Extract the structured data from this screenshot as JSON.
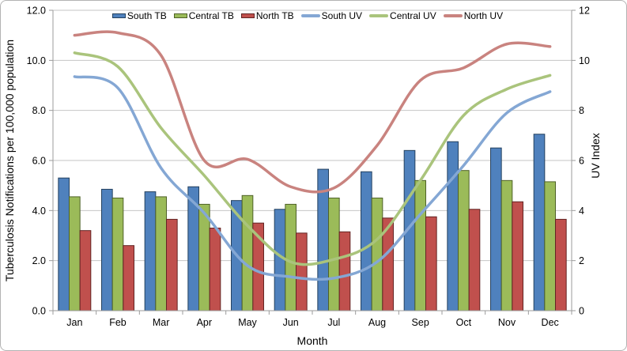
{
  "chart_data": {
    "type": "combo-bar-line",
    "categories": [
      "Jan",
      "Feb",
      "Mar",
      "Apr",
      "May",
      "Jun",
      "Jul",
      "Aug",
      "Sep",
      "Oct",
      "Nov",
      "Dec"
    ],
    "bar_series": [
      {
        "name": "South TB",
        "color": "#4f81bd",
        "border": "#24415f",
        "values": [
          5.3,
          4.85,
          4.75,
          4.95,
          4.4,
          4.05,
          5.65,
          5.55,
          6.4,
          6.75,
          6.5,
          7.05
        ]
      },
      {
        "name": "Central TB",
        "color": "#9bbb59",
        "border": "#4f6228",
        "values": [
          4.55,
          4.5,
          4.55,
          4.25,
          4.6,
          4.25,
          4.5,
          4.5,
          5.2,
          5.6,
          5.2,
          5.15
        ]
      },
      {
        "name": "North TB",
        "color": "#c0504d",
        "border": "#622423",
        "values": [
          3.2,
          2.6,
          3.65,
          3.3,
          3.5,
          3.1,
          3.15,
          3.7,
          3.75,
          4.05,
          4.35,
          3.65
        ]
      }
    ],
    "line_series": [
      {
        "name": "South UV",
        "color": "#84a7d4",
        "values": [
          9.35,
          8.9,
          5.7,
          3.9,
          1.8,
          1.35,
          1.3,
          1.95,
          3.85,
          5.8,
          7.9,
          8.75
        ]
      },
      {
        "name": "Central UV",
        "color": "#aac47c",
        "values": [
          10.3,
          9.75,
          7.3,
          5.4,
          3.4,
          1.95,
          2.05,
          2.85,
          5.2,
          7.8,
          8.85,
          9.4
        ]
      },
      {
        "name": "North UV",
        "color": "#c9837f",
        "values": [
          11.0,
          11.1,
          10.2,
          6.0,
          6.05,
          4.95,
          4.9,
          6.6,
          9.2,
          9.7,
          10.65,
          10.55
        ]
      }
    ],
    "left_axis": {
      "title": "Tuberculosis Notifications per 100,000 population",
      "min": 0,
      "max": 12,
      "step": 2,
      "tick_labels": [
        "0.0",
        "2.0",
        "4.0",
        "6.0",
        "8.0",
        "10.0",
        "12.0"
      ]
    },
    "right_axis": {
      "title": "UV  Index",
      "min": 0,
      "max": 12,
      "step": 2,
      "tick_labels": [
        "0",
        "2",
        "4",
        "6",
        "8",
        "10",
        "12"
      ]
    },
    "x_axis": {
      "title": "Month"
    },
    "legend_position": "top",
    "grid": true,
    "gridline_color": "#c6c6c6",
    "axis_color": "#9b9b9b"
  }
}
